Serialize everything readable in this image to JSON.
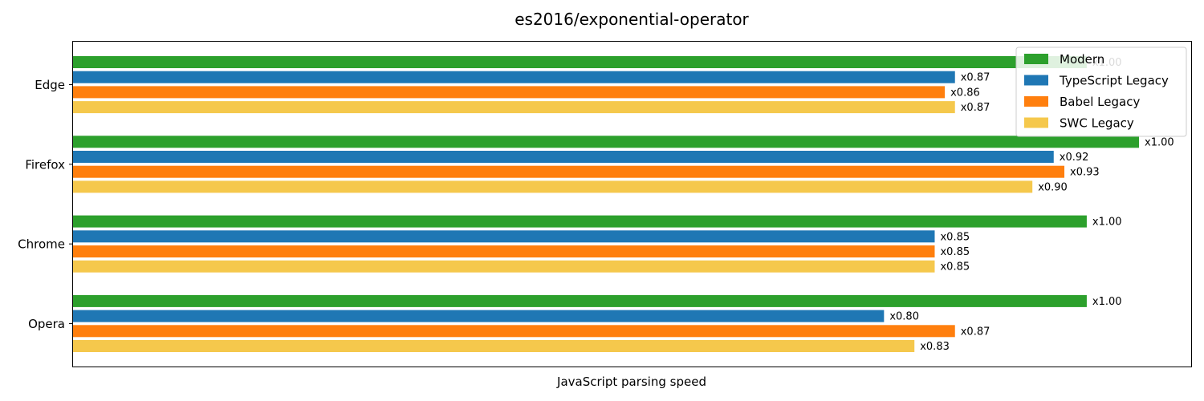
{
  "chart_data": {
    "type": "bar",
    "orientation": "horizontal",
    "title": "es2016/exponential-operator",
    "xlabel": "JavaScript parsing speed",
    "ylabel": "",
    "categories": [
      "Edge",
      "Firefox",
      "Chrome",
      "Opera"
    ],
    "series": [
      {
        "name": "Modern",
        "color": "#2ca02c",
        "values": [
          1.0,
          1.0,
          1.0,
          1.0
        ],
        "labels": [
          "x1.00",
          "x1.00",
          "x1.00",
          "x1.00"
        ]
      },
      {
        "name": "TypeScript Legacy",
        "color": "#1f77b4",
        "values": [
          0.87,
          0.92,
          0.85,
          0.8
        ],
        "labels": [
          "x0.87",
          "x0.92",
          "x0.85",
          "x0.80"
        ]
      },
      {
        "name": "Babel Legacy",
        "color": "#ff7f0e",
        "values": [
          0.86,
          0.93,
          0.85,
          0.87
        ],
        "labels": [
          "x0.86",
          "x0.93",
          "x0.85",
          "x0.87"
        ]
      },
      {
        "name": "SWC Legacy",
        "color": "#f5c84c",
        "values": [
          0.87,
          0.9,
          0.85,
          0.83
        ],
        "labels": [
          "x0.87",
          "x0.90",
          "x0.85",
          "x0.83"
        ]
      }
    ],
    "category_scale": [
      0.951,
      1.0,
      0.951,
      0.951
    ],
    "grid": false,
    "legend_position": "top-right"
  }
}
